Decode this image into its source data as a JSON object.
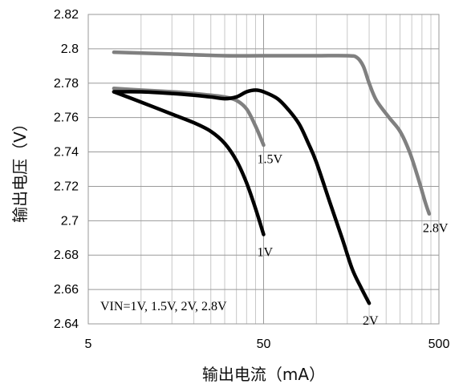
{
  "chart_data": {
    "type": "line",
    "xlabel": "输出电流（mA）",
    "ylabel": "输出电压（V）",
    "x_scale": "log",
    "xlim": [
      5,
      500
    ],
    "ylim": [
      2.64,
      2.82
    ],
    "x_ticks": [
      5,
      50,
      500
    ],
    "x_tick_labels": [
      "5",
      "50",
      "500"
    ],
    "y_ticks": [
      2.64,
      2.66,
      2.68,
      2.7,
      2.72,
      2.74,
      2.76,
      2.78,
      2.8,
      2.82
    ],
    "y_tick_labels": [
      "2.64",
      "2.66",
      "2.68",
      "2.7",
      "2.72",
      "2.74",
      "2.76",
      "2.78",
      "2.8",
      "2.82"
    ],
    "grid": true,
    "annotation": "VIN=1V, 1.5V, 2V, 2.8V",
    "series": [
      {
        "name": "1V",
        "color": "#000000",
        "points": [
          [
            7,
            2.775
          ],
          [
            10,
            2.769
          ],
          [
            15,
            2.762
          ],
          [
            20,
            2.757
          ],
          [
            25,
            2.752
          ],
          [
            30,
            2.745
          ],
          [
            35,
            2.735
          ],
          [
            40,
            2.722
          ],
          [
            45,
            2.707
          ],
          [
            50,
            2.692
          ]
        ]
      },
      {
        "name": "1.5V",
        "color": "#808080",
        "points": [
          [
            7,
            2.777
          ],
          [
            10,
            2.776
          ],
          [
            15,
            2.775
          ],
          [
            20,
            2.774
          ],
          [
            25,
            2.773
          ],
          [
            30,
            2.772
          ],
          [
            35,
            2.77
          ],
          [
            40,
            2.765
          ],
          [
            45,
            2.755
          ],
          [
            50,
            2.744
          ]
        ]
      },
      {
        "name": "2V",
        "color": "#000000",
        "points": [
          [
            7,
            2.775
          ],
          [
            10,
            2.775
          ],
          [
            15,
            2.774
          ],
          [
            20,
            2.773
          ],
          [
            25,
            2.772
          ],
          [
            30,
            2.771
          ],
          [
            35,
            2.772
          ],
          [
            40,
            2.775
          ],
          [
            45,
            2.776
          ],
          [
            50,
            2.775
          ],
          [
            60,
            2.771
          ],
          [
            70,
            2.764
          ],
          [
            80,
            2.756
          ],
          [
            90,
            2.745
          ],
          [
            100,
            2.734
          ],
          [
            120,
            2.71
          ],
          [
            140,
            2.69
          ],
          [
            160,
            2.672
          ],
          [
            180,
            2.661
          ],
          [
            200,
            2.652
          ]
        ]
      },
      {
        "name": "2.8V",
        "color": "#808080",
        "points": [
          [
            7,
            2.798
          ],
          [
            15,
            2.797
          ],
          [
            30,
            2.796
          ],
          [
            60,
            2.796
          ],
          [
            100,
            2.796
          ],
          [
            150,
            2.796
          ],
          [
            170,
            2.795
          ],
          [
            185,
            2.79
          ],
          [
            200,
            2.78
          ],
          [
            220,
            2.77
          ],
          [
            260,
            2.76
          ],
          [
            300,
            2.752
          ],
          [
            340,
            2.74
          ],
          [
            380,
            2.725
          ],
          [
            420,
            2.71
          ],
          [
            440,
            2.704
          ]
        ]
      }
    ],
    "series_label_positions": {
      "1V": [
        50,
        2.686
      ],
      "1.5V": [
        50,
        2.74
      ],
      "2V": [
        200,
        2.646
      ],
      "2.8V": [
        440,
        2.7
      ]
    }
  }
}
